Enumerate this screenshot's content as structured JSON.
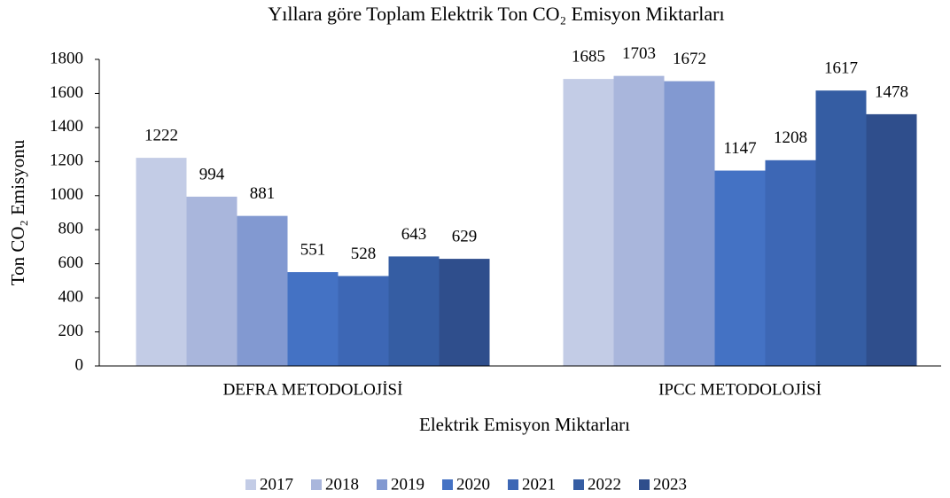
{
  "chart_data": {
    "type": "bar",
    "title": "Yıllara göre Toplam Elektrik Ton CO₂ Emisyon Miktarları",
    "x_label": "Elektrik Emisyon Miktarları",
    "y_label": "Ton CO₂ Emisyonu",
    "categories": [
      "DEFRA METODOLOJİSİ",
      "IPCC METODOLOJİSİ"
    ],
    "series": [
      {
        "name": "2017",
        "color": "#c3cce6",
        "values": [
          1222,
          1685
        ]
      },
      {
        "name": "2018",
        "color": "#a9b6dc",
        "values": [
          994,
          1703
        ]
      },
      {
        "name": "2019",
        "color": "#8299d1",
        "values": [
          881,
          1672
        ]
      },
      {
        "name": "2020",
        "color": "#4472c4",
        "values": [
          551,
          1147
        ]
      },
      {
        "name": "2021",
        "color": "#3d67b5",
        "values": [
          528,
          1208
        ]
      },
      {
        "name": "2022",
        "color": "#355da3",
        "values": [
          643,
          1617
        ]
      },
      {
        "name": "2023",
        "color": "#2f4e8c",
        "values": [
          629,
          1478
        ]
      }
    ],
    "ylim": [
      0,
      1800
    ],
    "yticks": [
      0,
      200,
      400,
      600,
      800,
      1000,
      1200,
      1400,
      1600,
      1800
    ],
    "legend": "bottom"
  }
}
